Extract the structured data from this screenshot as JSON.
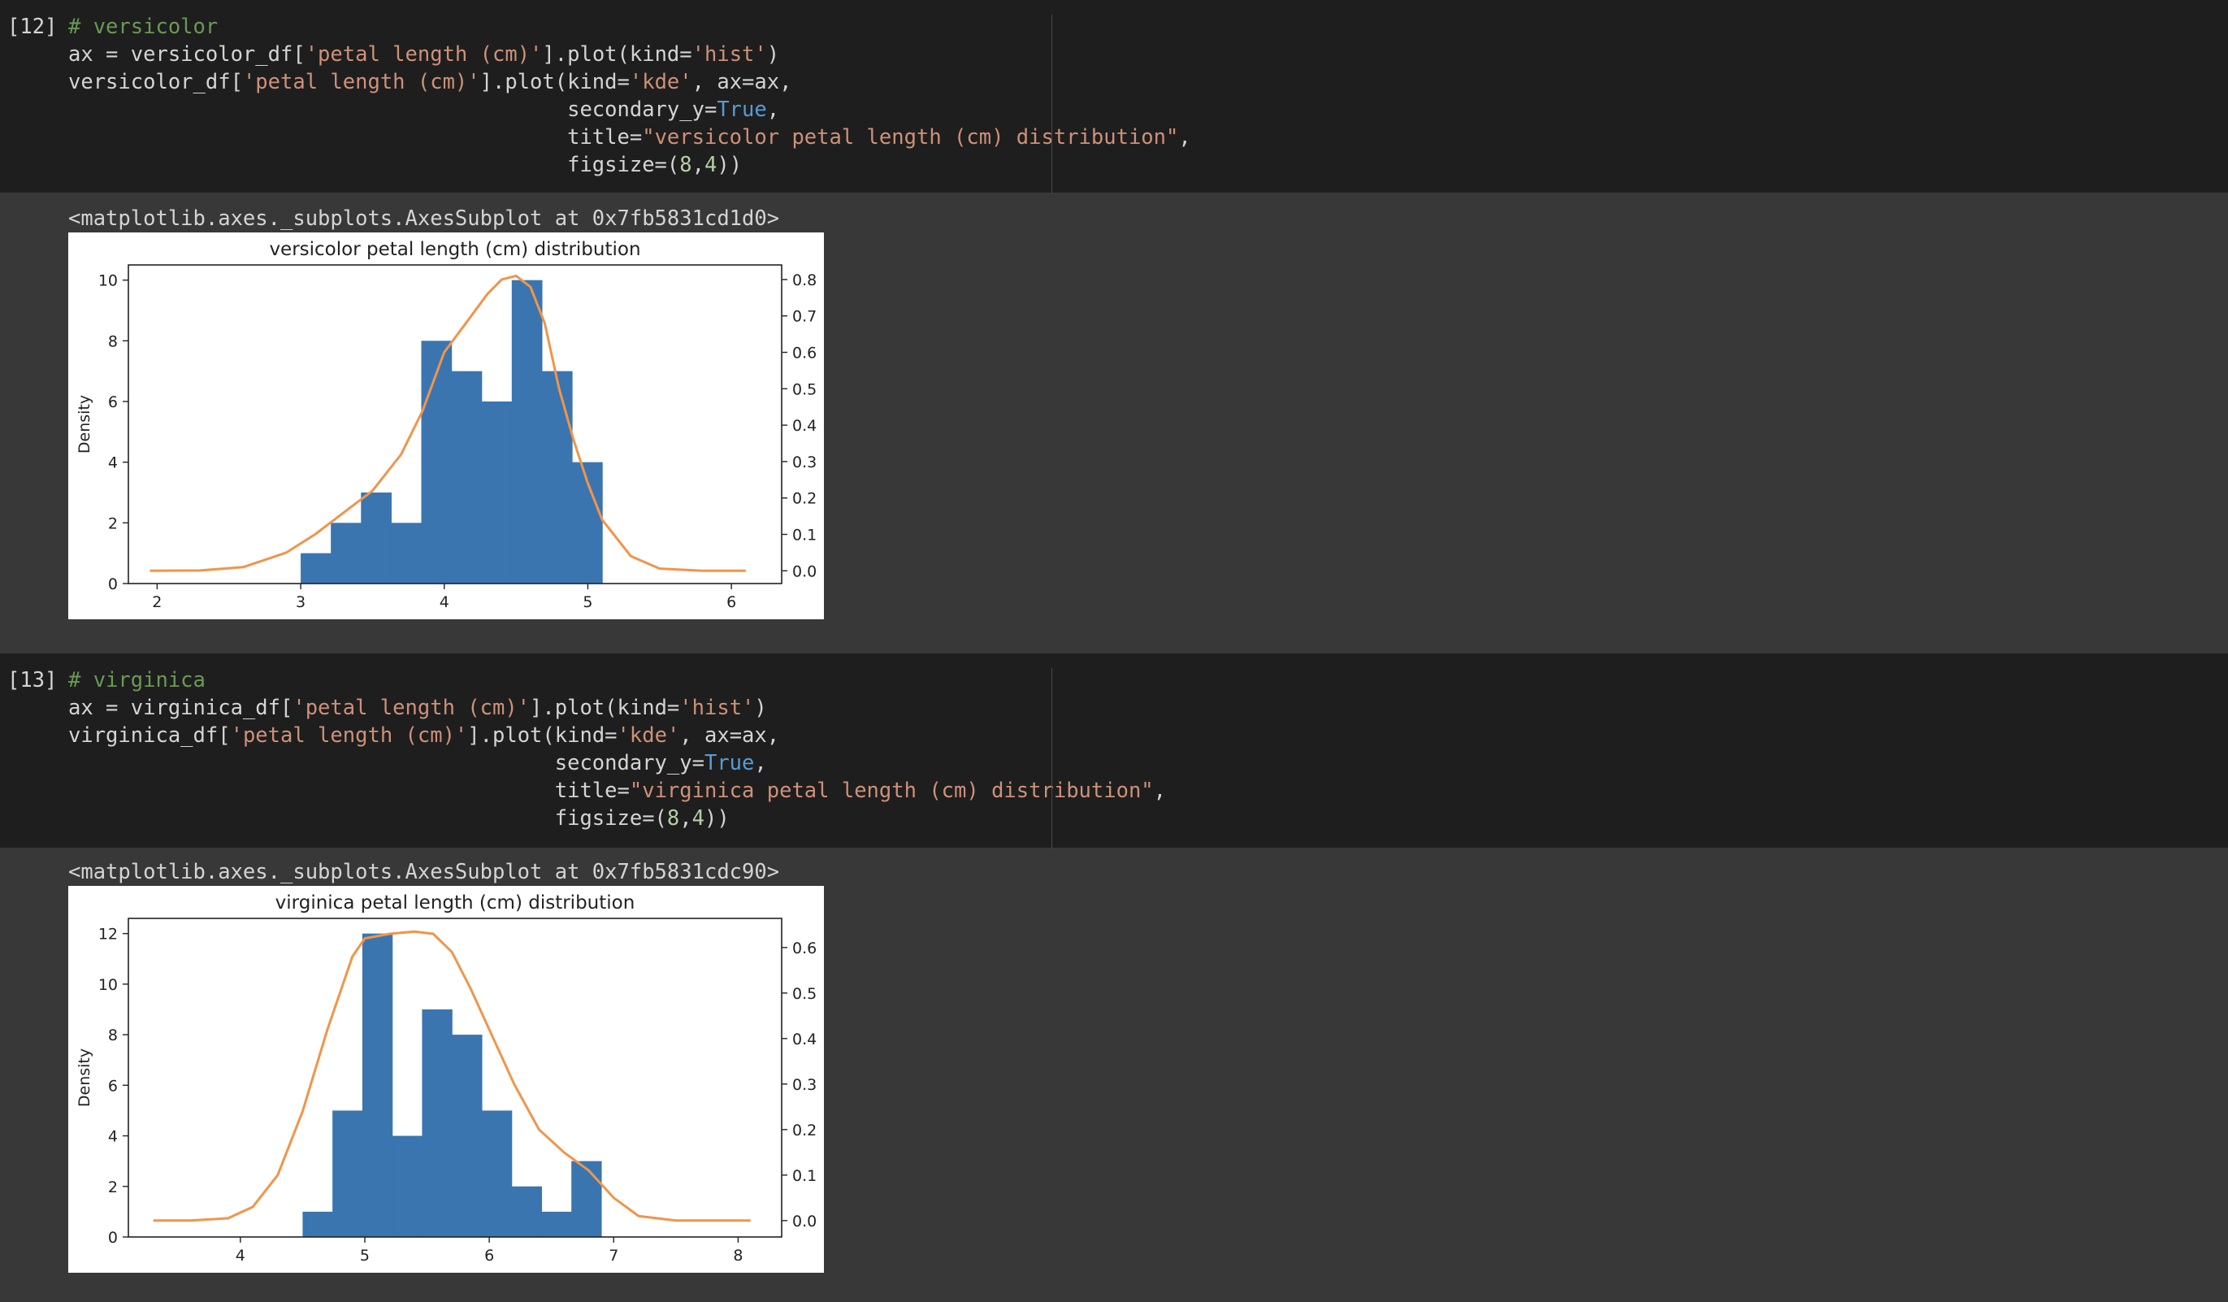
{
  "cells": [
    {
      "prompt": "[12]",
      "lines": [
        [
          {
            "t": "# versicolor",
            "c": "com"
          }
        ],
        [
          {
            "t": "ax = versicolor_df["
          },
          {
            "t": "'petal length (cm)'",
            "c": "str"
          },
          {
            "t": "].plot(kind="
          },
          {
            "t": "'hist'",
            "c": "str"
          },
          {
            "t": ")"
          }
        ],
        [
          {
            "t": "versicolor_df["
          },
          {
            "t": "'petal length (cm)'",
            "c": "str"
          },
          {
            "t": "].plot(kind="
          },
          {
            "t": "'kde'",
            "c": "str"
          },
          {
            "t": ", ax=ax,"
          }
        ],
        [
          {
            "t": "                                        secondary_y="
          },
          {
            "t": "True",
            "c": "kw"
          },
          {
            "t": ","
          }
        ],
        [
          {
            "t": "                                        title="
          },
          {
            "t": "\"versicolor petal length (cm) distribution\"",
            "c": "str"
          },
          {
            "t": ","
          }
        ],
        [
          {
            "t": "                                        figsize=("
          },
          {
            "t": "8",
            "c": "num"
          },
          {
            "t": ","
          },
          {
            "t": "4",
            "c": "num"
          },
          {
            "t": "))"
          }
        ]
      ],
      "output_text": "<matplotlib.axes._subplots.AxesSubplot at 0x7fb5831cd1d0>"
    },
    {
      "prompt": "[13]",
      "lines": [
        [
          {
            "t": "# virginica",
            "c": "com"
          }
        ],
        [
          {
            "t": "ax = virginica_df["
          },
          {
            "t": "'petal length (cm)'",
            "c": "str"
          },
          {
            "t": "].plot(kind="
          },
          {
            "t": "'hist'",
            "c": "str"
          },
          {
            "t": ")"
          }
        ],
        [
          {
            "t": "virginica_df["
          },
          {
            "t": "'petal length (cm)'",
            "c": "str"
          },
          {
            "t": "].plot(kind="
          },
          {
            "t": "'kde'",
            "c": "str"
          },
          {
            "t": ", ax=ax,"
          }
        ],
        [
          {
            "t": "                                       secondary_y="
          },
          {
            "t": "True",
            "c": "kw"
          },
          {
            "t": ","
          }
        ],
        [
          {
            "t": "                                       title="
          },
          {
            "t": "\"virginica petal length (cm) distribution\"",
            "c": "str"
          },
          {
            "t": ","
          }
        ],
        [
          {
            "t": "                                       figsize=("
          },
          {
            "t": "8",
            "c": "num"
          },
          {
            "t": ","
          },
          {
            "t": "4",
            "c": "num"
          },
          {
            "t": "))"
          }
        ]
      ],
      "output_text": "<matplotlib.axes._subplots.AxesSubplot at 0x7fb5831cdc90>"
    }
  ],
  "colors": {
    "hist": "#3a75b0",
    "kde": "#f0954a"
  },
  "chart_data": [
    {
      "type": "bar",
      "title": "versicolor petal length (cm) distribution",
      "xlabel": "",
      "ylabel": "Density",
      "xlim": [
        1.8,
        6.35
      ],
      "ylim": [
        0,
        10.5
      ],
      "y2lim": [
        -0.035,
        0.84
      ],
      "xticks": [
        2,
        3,
        4,
        5,
        6
      ],
      "yticks": [
        0,
        2,
        4,
        6,
        8,
        10
      ],
      "y2ticks": [
        "0.0",
        "0.1",
        "0.2",
        "0.3",
        "0.4",
        "0.5",
        "0.6",
        "0.7",
        "0.8"
      ],
      "bins": [
        3.0,
        3.21,
        3.42,
        3.63,
        3.84,
        4.05,
        4.26,
        4.47,
        4.68,
        4.89,
        5.1
      ],
      "counts": [
        1,
        2,
        3,
        2,
        8,
        7,
        6,
        10,
        7,
        4
      ],
      "kde": {
        "x": [
          1.95,
          2.3,
          2.6,
          2.9,
          3.1,
          3.3,
          3.5,
          3.7,
          3.85,
          4.0,
          4.15,
          4.3,
          4.4,
          4.5,
          4.6,
          4.7,
          4.8,
          4.9,
          5.0,
          5.1,
          5.3,
          5.5,
          5.8,
          6.1
        ],
        "y": [
          0.0,
          0.001,
          0.01,
          0.05,
          0.1,
          0.16,
          0.22,
          0.32,
          0.44,
          0.6,
          0.68,
          0.76,
          0.8,
          0.81,
          0.78,
          0.68,
          0.5,
          0.36,
          0.24,
          0.14,
          0.04,
          0.006,
          0.0,
          0.0
        ]
      }
    },
    {
      "type": "bar",
      "title": "virginica petal length (cm) distribution",
      "xlabel": "",
      "ylabel": "Density",
      "xlim": [
        3.1,
        8.35
      ],
      "ylim": [
        0,
        12.6
      ],
      "y2lim": [
        -0.036,
        0.664
      ],
      "xticks": [
        4,
        5,
        6,
        7,
        8
      ],
      "yticks": [
        0,
        2,
        4,
        6,
        8,
        10,
        12
      ],
      "y2ticks": [
        "0.0",
        "0.1",
        "0.2",
        "0.3",
        "0.4",
        "0.5",
        "0.6"
      ],
      "bins": [
        4.5,
        4.74,
        4.98,
        5.22,
        5.46,
        5.7,
        5.94,
        6.18,
        6.42,
        6.66,
        6.9
      ],
      "counts": [
        1,
        5,
        12,
        4,
        9,
        8,
        5,
        2,
        1,
        3
      ],
      "kde": {
        "x": [
          3.3,
          3.6,
          3.9,
          4.1,
          4.3,
          4.5,
          4.7,
          4.9,
          5.0,
          5.2,
          5.4,
          5.55,
          5.7,
          5.85,
          6.0,
          6.2,
          6.4,
          6.6,
          6.8,
          7.0,
          7.2,
          7.5,
          7.8,
          8.1
        ],
        "y": [
          0.0,
          0.0,
          0.005,
          0.03,
          0.1,
          0.24,
          0.42,
          0.58,
          0.62,
          0.63,
          0.635,
          0.63,
          0.59,
          0.51,
          0.42,
          0.3,
          0.2,
          0.15,
          0.11,
          0.05,
          0.01,
          0.0,
          0.0,
          0.0
        ]
      }
    }
  ]
}
